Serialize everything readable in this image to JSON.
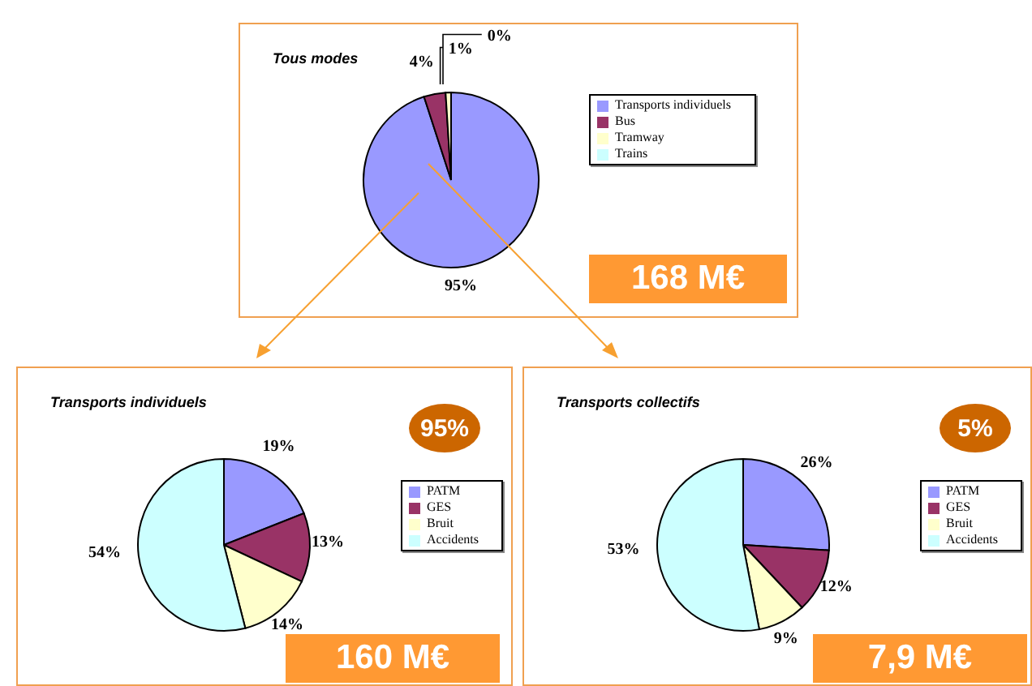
{
  "chart_data": [
    {
      "type": "pie",
      "title": "Tous modes",
      "categories": [
        "Transports individuels",
        "Bus",
        "Tramway",
        "Trains"
      ],
      "values": [
        95,
        4,
        1,
        0
      ],
      "value_labels": [
        "95%",
        "4%",
        "1%",
        "0%"
      ],
      "colors": [
        "#9999ff",
        "#993366",
        "#ffffcc",
        "#ccffff"
      ],
      "legend": "right",
      "annotations": [
        "168 M€"
      ]
    },
    {
      "type": "pie",
      "title": "Transports individuels",
      "categories": [
        "PATM",
        "GES",
        "Bruit",
        "Accidents"
      ],
      "values": [
        19,
        13,
        14,
        54
      ],
      "value_labels": [
        "19%",
        "13%",
        "14%",
        "54%"
      ],
      "colors": [
        "#9999ff",
        "#993366",
        "#ffffcc",
        "#ccffff"
      ],
      "legend": "right",
      "annotations": [
        "95%",
        "160 M€"
      ]
    },
    {
      "type": "pie",
      "title": "Transports collectifs",
      "categories": [
        "PATM",
        "GES",
        "Bruit",
        "Accidents"
      ],
      "values": [
        26,
        12,
        9,
        53
      ],
      "value_labels": [
        "26%",
        "12%",
        "9%",
        "53%"
      ],
      "colors": [
        "#9999ff",
        "#993366",
        "#ffffcc",
        "#ccffff"
      ],
      "legend": "right",
      "annotations": [
        "5%",
        "7,9 M€"
      ]
    }
  ]
}
